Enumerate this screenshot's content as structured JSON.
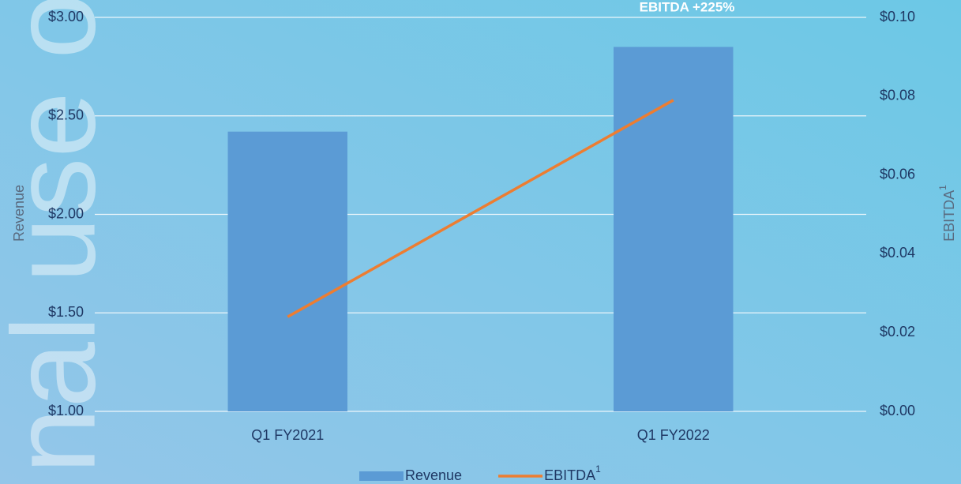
{
  "chart_data": {
    "type": "bar_line",
    "annotation": "EBITDA +225%",
    "watermark": "nal use o",
    "ylabel": "Revenue",
    "y2label": "EBITDA",
    "superscript": "1",
    "categories": [
      "Q1 FY2021",
      "Q1 FY2022"
    ],
    "series": [
      {
        "name": "Revenue",
        "type": "bar",
        "color": "#5b9bd5",
        "values": [
          2.42,
          2.85
        ]
      },
      {
        "name": "EBITDA",
        "type": "line",
        "axis": "y2",
        "color": "#ed7d31",
        "values": [
          0.024,
          0.079
        ]
      }
    ],
    "ylim": [
      1,
      3
    ],
    "yticks": [
      {
        "value": 1,
        "label": "$1.00"
      },
      {
        "value": 1.5,
        "label": "$1.50"
      },
      {
        "value": 2,
        "label": "$2.00"
      },
      {
        "value": 2.5,
        "label": "$2.50"
      },
      {
        "value": 3,
        "label": "$3.00"
      }
    ],
    "y2lim": [
      0,
      0.1
    ],
    "y2ticks": [
      {
        "value": 0,
        "label": "$0.00"
      },
      {
        "value": 0.02,
        "label": "$0.02"
      },
      {
        "value": 0.04,
        "label": "$0.04"
      },
      {
        "value": 0.06,
        "label": "$0.06"
      },
      {
        "value": 0.08,
        "label": "$0.08"
      },
      {
        "value": 0.1,
        "label": "$0.10"
      }
    ],
    "grid": true,
    "legend": "bottom"
  }
}
